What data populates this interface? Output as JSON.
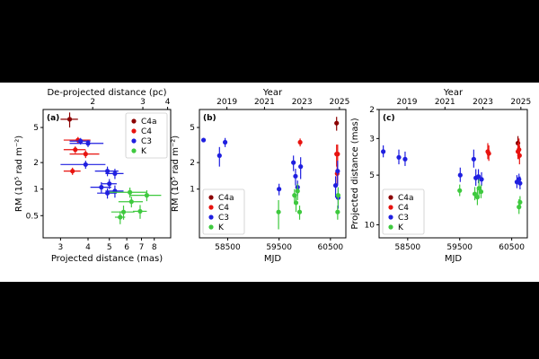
{
  "figure": {
    "background": "#ffffff",
    "frame": "#000000"
  },
  "colors": {
    "C4a": "#8b0000",
    "C4": "#e8130f",
    "C3": "#1f1fe0",
    "K": "#3ec93e"
  },
  "chart_data": [
    {
      "type": "scatter",
      "panel_label": "(a)",
      "xlabel": "Projected distance (mas)",
      "ylabel": "RM (10⁵ rad m⁻²)",
      "top_axis_label": "De-projected distance (pc)",
      "xscale": "log",
      "yscale": "log",
      "xlim": [
        2.5,
        9.5
      ],
      "ylim": [
        0.28,
        8.0
      ],
      "xticks": [
        3,
        4,
        5,
        6,
        7,
        8
      ],
      "xtick_labels": [
        "3",
        "4",
        "5",
        "6",
        "7",
        "8"
      ],
      "yticks": [
        0.5,
        1,
        2,
        5
      ],
      "ytick_labels": [
        "0.5",
        "1",
        "2",
        "5"
      ],
      "top_ticks_at_x": [
        4.2,
        7.1,
        9.2
      ],
      "top_tick_labels": [
        "2",
        "3",
        "4"
      ],
      "legend": [
        "C4a",
        "C4",
        "C3",
        "K"
      ],
      "legend_loc": "upper right",
      "series": [
        {
          "name": "C4a",
          "points": [
            [
              3.3,
              6.2,
              0.3,
              1.2
            ]
          ]
        },
        {
          "name": "C4",
          "points": [
            [
              3.6,
              3.6,
              0.5,
              0.3
            ],
            [
              3.5,
              2.8,
              0.4,
              0.25
            ],
            [
              3.9,
              2.5,
              0.6,
              0.25
            ],
            [
              3.4,
              1.6,
              0.3,
              0.15
            ]
          ]
        },
        {
          "name": "C3",
          "points": [
            [
              3.7,
              3.5,
              0.4,
              0.3
            ],
            [
              4.0,
              3.3,
              0.7,
              0.3
            ],
            [
              3.9,
              1.9,
              0.9,
              0.2
            ],
            [
              4.9,
              1.6,
              0.6,
              0.2
            ],
            [
              5.3,
              1.5,
              0.5,
              0.2
            ],
            [
              4.6,
              1.05,
              0.5,
              0.15
            ],
            [
              5.0,
              1.15,
              0.4,
              0.15
            ],
            [
              5.3,
              0.95,
              0.5,
              0.15
            ],
            [
              4.9,
              0.9,
              0.5,
              0.12
            ]
          ]
        },
        {
          "name": "K",
          "points": [
            [
              6.2,
              0.92,
              1.2,
              0.12
            ],
            [
              7.4,
              0.85,
              1.2,
              0.12
            ],
            [
              6.3,
              0.72,
              0.8,
              0.1
            ],
            [
              5.8,
              0.55,
              0.7,
              0.1
            ],
            [
              6.9,
              0.56,
              0.5,
              0.1
            ],
            [
              5.6,
              0.48,
              0.3,
              0.08
            ]
          ]
        }
      ]
    },
    {
      "type": "scatter",
      "panel_label": "(b)",
      "xlabel": "MJD",
      "ylabel": "RM (10⁵ rad m⁻²)",
      "top_axis_label": "Year",
      "yscale": "log",
      "xlim": [
        57950,
        60800
      ],
      "ylim": [
        0.28,
        8.0
      ],
      "xticks": [
        58500,
        59500,
        60500
      ],
      "xtick_labels": [
        "58500",
        "59500",
        "60500"
      ],
      "yticks": [
        1,
        2,
        5
      ],
      "ytick_labels": [
        "1",
        "2",
        "5"
      ],
      "top_ticks_at_x": [
        58485,
        59216,
        59946,
        60676
      ],
      "top_tick_labels": [
        "2019",
        "2021",
        "2023",
        "2025"
      ],
      "legend": [
        "C4a",
        "C4",
        "C3",
        "K"
      ],
      "legend_loc": "lower left",
      "series": [
        {
          "name": "C4a",
          "points": [
            [
              60620,
              5.6,
              0,
              1.0
            ]
          ]
        },
        {
          "name": "C4",
          "points": [
            [
              59910,
              3.4,
              0,
              0.35
            ],
            [
              60620,
              2.5,
              0,
              0.7
            ],
            [
              60640,
              2.5,
              0,
              0.7
            ],
            [
              60630,
              1.5,
              0,
              0.4
            ]
          ]
        },
        {
          "name": "C3",
          "points": [
            [
              58030,
              3.6,
              0,
              0.2
            ],
            [
              58340,
              2.4,
              0,
              0.6
            ],
            [
              58450,
              3.4,
              0,
              0.4
            ],
            [
              59500,
              1.0,
              0,
              0.15
            ],
            [
              59780,
              2.0,
              0,
              0.4
            ],
            [
              59820,
              1.4,
              0,
              0.3
            ],
            [
              59860,
              1.05,
              0,
              0.2
            ],
            [
              59920,
              1.8,
              0,
              0.5
            ],
            [
              60600,
              1.1,
              0,
              0.3
            ],
            [
              60640,
              1.6,
              0,
              0.5
            ],
            [
              60650,
              0.8,
              0,
              0.2
            ]
          ]
        },
        {
          "name": "K",
          "points": [
            [
              59490,
              0.55,
              0,
              0.2
            ],
            [
              59800,
              0.85,
              0,
              0.15
            ],
            [
              59830,
              0.7,
              0,
              0.15
            ],
            [
              59860,
              0.95,
              0,
              0.2
            ],
            [
              59900,
              0.55,
              0,
              0.1
            ],
            [
              60640,
              0.55,
              0,
              0.1
            ],
            [
              60650,
              0.85,
              0,
              0.2
            ]
          ]
        }
      ]
    },
    {
      "type": "scatter",
      "panel_label": "(c)",
      "xlabel": "MJD",
      "ylabel": "Projected distance (mas)",
      "top_axis_label": "Year",
      "yscale": "log",
      "yinverted": true,
      "xlim": [
        57950,
        60800
      ],
      "ylim": [
        2.0,
        12.0
      ],
      "xticks": [
        58500,
        59500,
        60500
      ],
      "xtick_labels": [
        "58500",
        "59500",
        "60500"
      ],
      "yticks": [
        2,
        3,
        5,
        10
      ],
      "ytick_labels": [
        "2",
        "3",
        "5",
        "10"
      ],
      "top_ticks_at_x": [
        58485,
        59216,
        59946,
        60676
      ],
      "top_tick_labels": [
        "2019",
        "2021",
        "2023",
        "2025"
      ],
      "legend": [
        "C4a",
        "C4",
        "C3",
        "K"
      ],
      "legend_loc": "lower left",
      "series": [
        {
          "name": "C4a",
          "points": [
            [
              60620,
              3.2,
              0,
              0.3
            ]
          ]
        },
        {
          "name": "C4",
          "points": [
            [
              60040,
              3.6,
              0,
              0.4
            ],
            [
              60060,
              3.7,
              0,
              0.4
            ],
            [
              60620,
              3.6,
              0,
              0.4
            ],
            [
              60650,
              3.8,
              0,
              0.5
            ],
            [
              60640,
              3.5,
              0,
              0.5
            ]
          ]
        },
        {
          "name": "C3",
          "points": [
            [
              58030,
              3.6,
              0,
              0.3
            ],
            [
              58330,
              3.9,
              0,
              0.4
            ],
            [
              58450,
              4.0,
              0,
              0.4
            ],
            [
              59510,
              5.0,
              0,
              0.5
            ],
            [
              59770,
              4.0,
              0,
              0.5
            ],
            [
              59810,
              5.2,
              0,
              0.6
            ],
            [
              59860,
              5.1,
              0,
              0.5
            ],
            [
              59920,
              5.3,
              0,
              0.5
            ],
            [
              60600,
              5.5,
              0,
              0.5
            ],
            [
              60640,
              5.3,
              0,
              0.4
            ],
            [
              60660,
              5.6,
              0,
              0.5
            ]
          ]
        },
        {
          "name": "K",
          "points": [
            [
              59500,
              6.2,
              0,
              0.5
            ],
            [
              59790,
              6.5,
              0,
              0.6
            ],
            [
              59840,
              6.8,
              0,
              0.8
            ],
            [
              59870,
              6.0,
              0,
              0.7
            ],
            [
              59910,
              6.3,
              0,
              0.6
            ],
            [
              60640,
              7.8,
              0,
              0.8
            ],
            [
              60660,
              7.3,
              0,
              0.6
            ]
          ]
        }
      ]
    }
  ]
}
